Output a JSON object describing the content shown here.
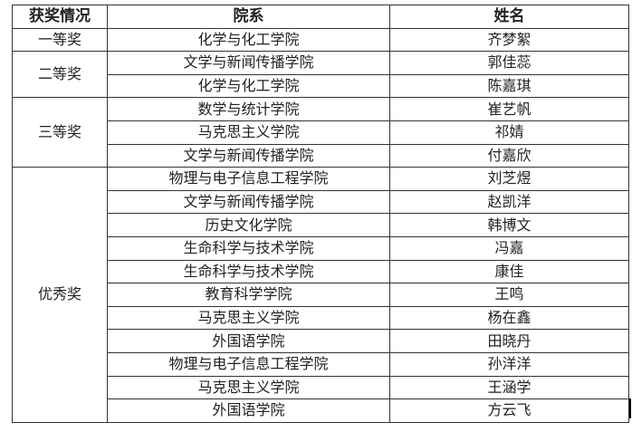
{
  "headers": [
    "获奖情况",
    "院系",
    "姓名"
  ],
  "groups": [
    {
      "award": "一等奖",
      "rows": [
        [
          "化学与化工学院",
          "齐梦絮"
        ]
      ]
    },
    {
      "award": "二等奖",
      "rows": [
        [
          "文学与新闻传播学院",
          "郭佳蕊"
        ],
        [
          "化学与化工学院",
          "陈嘉琪"
        ]
      ]
    },
    {
      "award": "三等奖",
      "rows": [
        [
          "数学与统计学院",
          "崔艺帆"
        ],
        [
          "马克思主义学院",
          "祁婧"
        ],
        [
          "文学与新闻传播学院",
          "付嘉欣"
        ]
      ]
    },
    {
      "award": "优秀奖",
      "rows": [
        [
          "物理与电子信息工程学院",
          "刘芝煜"
        ],
        [
          "文学与新闻传播学院",
          "赵凯洋"
        ],
        [
          "历史文化学院",
          "韩博文"
        ],
        [
          "生命科学与技术学院",
          "冯嘉"
        ],
        [
          "生命科学与技术学院",
          "康佳"
        ],
        [
          "教育科学学院",
          "王鸣"
        ],
        [
          "马克思主义学院",
          "杨在鑫"
        ],
        [
          "外国语学院",
          "田晓丹"
        ],
        [
          "物理与电子信息工程学院",
          "孙洋洋"
        ],
        [
          "马克思主义学院",
          "王涵学"
        ],
        [
          "外国语学院",
          "方云飞"
        ]
      ]
    }
  ]
}
